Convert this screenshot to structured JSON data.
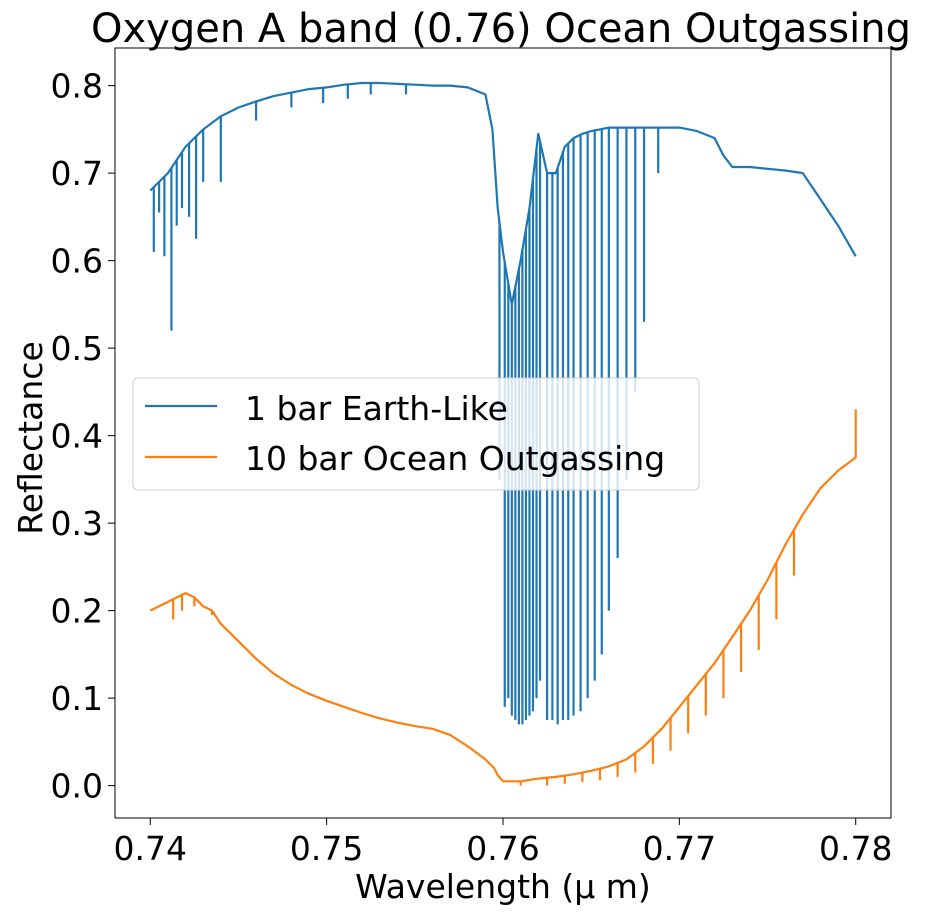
{
  "chart_data": {
    "type": "line",
    "title": "Oxygen A band (0.76) Ocean Outgassing",
    "xlabel": "Wavelength (μ m)",
    "ylabel": "Reflectance",
    "xlim": [
      0.738,
      0.782
    ],
    "ylim": [
      -0.037,
      0.843
    ],
    "xticks": [
      0.74,
      0.75,
      0.76,
      0.77,
      0.78
    ],
    "xtick_labels": [
      "0.74",
      "0.75",
      "0.76",
      "0.77",
      "0.78"
    ],
    "yticks": [
      0.0,
      0.1,
      0.2,
      0.3,
      0.4,
      0.5,
      0.6,
      0.7,
      0.8
    ],
    "ytick_labels": [
      "0.0",
      "0.1",
      "0.2",
      "0.3",
      "0.4",
      "0.5",
      "0.6",
      "0.7",
      "0.8"
    ],
    "grid": false,
    "legend_position": "center-left",
    "series": [
      {
        "name": "1 bar Earth-Like",
        "color": "#1f77b4",
        "x": [
          0.74,
          0.7405,
          0.741,
          0.7415,
          0.742,
          0.743,
          0.744,
          0.745,
          0.746,
          0.747,
          0.748,
          0.749,
          0.75,
          0.751,
          0.752,
          0.753,
          0.754,
          0.755,
          0.756,
          0.757,
          0.758,
          0.759,
          0.7594,
          0.7597,
          0.76,
          0.7605,
          0.761,
          0.7615,
          0.762,
          0.7625,
          0.763,
          0.7635,
          0.764,
          0.7645,
          0.765,
          0.7655,
          0.766,
          0.767,
          0.768,
          0.769,
          0.77,
          0.771,
          0.772,
          0.7725,
          0.773,
          0.774,
          0.775,
          0.776,
          0.777,
          0.778,
          0.779,
          0.78
        ],
        "y": [
          0.68,
          0.69,
          0.7,
          0.715,
          0.73,
          0.75,
          0.765,
          0.775,
          0.782,
          0.788,
          0.792,
          0.796,
          0.798,
          0.801,
          0.803,
          0.803,
          0.802,
          0.801,
          0.8,
          0.8,
          0.798,
          0.79,
          0.75,
          0.66,
          0.61,
          0.55,
          0.6,
          0.66,
          0.745,
          0.7,
          0.7,
          0.73,
          0.74,
          0.745,
          0.748,
          0.75,
          0.752,
          0.752,
          0.752,
          0.752,
          0.752,
          0.748,
          0.74,
          0.72,
          0.707,
          0.707,
          0.705,
          0.703,
          0.7,
          0.67,
          0.64,
          0.605
        ],
        "absorption_lines": [
          {
            "x": 0.7402,
            "min": 0.61
          },
          {
            "x": 0.7405,
            "min": 0.655
          },
          {
            "x": 0.7408,
            "min": 0.605
          },
          {
            "x": 0.7412,
            "min": 0.52
          },
          {
            "x": 0.7415,
            "min": 0.64
          },
          {
            "x": 0.7418,
            "min": 0.66
          },
          {
            "x": 0.7422,
            "min": 0.65
          },
          {
            "x": 0.7426,
            "min": 0.625
          },
          {
            "x": 0.743,
            "min": 0.69
          },
          {
            "x": 0.744,
            "min": 0.69
          },
          {
            "x": 0.746,
            "min": 0.76
          },
          {
            "x": 0.748,
            "min": 0.775
          },
          {
            "x": 0.7498,
            "min": 0.78
          },
          {
            "x": 0.7512,
            "min": 0.785
          },
          {
            "x": 0.7525,
            "min": 0.79
          },
          {
            "x": 0.7545,
            "min": 0.79
          },
          {
            "x": 0.7598,
            "min": 0.35
          },
          {
            "x": 0.7601,
            "min": 0.09
          },
          {
            "x": 0.7603,
            "min": 0.1
          },
          {
            "x": 0.7605,
            "min": 0.08
          },
          {
            "x": 0.7607,
            "min": 0.075
          },
          {
            "x": 0.7609,
            "min": 0.07
          },
          {
            "x": 0.7611,
            "min": 0.07
          },
          {
            "x": 0.7613,
            "min": 0.075
          },
          {
            "x": 0.7615,
            "min": 0.08
          },
          {
            "x": 0.7617,
            "min": 0.085
          },
          {
            "x": 0.7619,
            "min": 0.1
          },
          {
            "x": 0.7621,
            "min": 0.12
          },
          {
            "x": 0.7625,
            "min": 0.075
          },
          {
            "x": 0.7628,
            "min": 0.075
          },
          {
            "x": 0.7631,
            "min": 0.07
          },
          {
            "x": 0.7634,
            "min": 0.075
          },
          {
            "x": 0.7637,
            "min": 0.075
          },
          {
            "x": 0.764,
            "min": 0.08
          },
          {
            "x": 0.7644,
            "min": 0.085
          },
          {
            "x": 0.7648,
            "min": 0.1
          },
          {
            "x": 0.7652,
            "min": 0.12
          },
          {
            "x": 0.7656,
            "min": 0.15
          },
          {
            "x": 0.766,
            "min": 0.2
          },
          {
            "x": 0.7665,
            "min": 0.26
          },
          {
            "x": 0.767,
            "min": 0.35
          },
          {
            "x": 0.7675,
            "min": 0.45
          },
          {
            "x": 0.768,
            "min": 0.53
          },
          {
            "x": 0.7688,
            "min": 0.7
          }
        ]
      },
      {
        "name": "10 bar Ocean Outgassing",
        "color": "#ff7f0e",
        "x": [
          0.74,
          0.7405,
          0.741,
          0.7415,
          0.742,
          0.7425,
          0.743,
          0.7435,
          0.744,
          0.745,
          0.746,
          0.747,
          0.748,
          0.749,
          0.75,
          0.751,
          0.752,
          0.753,
          0.754,
          0.755,
          0.756,
          0.757,
          0.758,
          0.759,
          0.7595,
          0.7597,
          0.76,
          0.761,
          0.762,
          0.763,
          0.764,
          0.765,
          0.766,
          0.767,
          0.768,
          0.769,
          0.77,
          0.771,
          0.772,
          0.773,
          0.774,
          0.775,
          0.776,
          0.777,
          0.778,
          0.779,
          0.78,
          0.78,
          0.78
        ],
        "y": [
          0.2,
          0.205,
          0.21,
          0.215,
          0.22,
          0.215,
          0.205,
          0.2,
          0.185,
          0.165,
          0.145,
          0.128,
          0.115,
          0.105,
          0.097,
          0.09,
          0.083,
          0.077,
          0.072,
          0.068,
          0.065,
          0.058,
          0.045,
          0.03,
          0.02,
          0.012,
          0.005,
          0.005,
          0.008,
          0.01,
          0.013,
          0.017,
          0.022,
          0.03,
          0.045,
          0.065,
          0.09,
          0.115,
          0.14,
          0.17,
          0.2,
          0.235,
          0.275,
          0.31,
          0.34,
          0.36,
          0.375,
          0.4,
          0.43
        ],
        "absorption_lines": [
          {
            "x": 0.7413,
            "min": 0.19
          },
          {
            "x": 0.7418,
            "min": 0.2
          },
          {
            "x": 0.7425,
            "min": 0.205
          },
          {
            "x": 0.7435,
            "min": 0.195
          },
          {
            "x": 0.761,
            "min": 0.0
          },
          {
            "x": 0.7625,
            "min": 0.0
          },
          {
            "x": 0.7635,
            "min": 0.002
          },
          {
            "x": 0.7645,
            "min": 0.004
          },
          {
            "x": 0.7655,
            "min": 0.006
          },
          {
            "x": 0.7665,
            "min": 0.01
          },
          {
            "x": 0.7675,
            "min": 0.015
          },
          {
            "x": 0.7685,
            "min": 0.025
          },
          {
            "x": 0.7695,
            "min": 0.04
          },
          {
            "x": 0.7705,
            "min": 0.06
          },
          {
            "x": 0.7715,
            "min": 0.08
          },
          {
            "x": 0.7725,
            "min": 0.1
          },
          {
            "x": 0.7735,
            "min": 0.13
          },
          {
            "x": 0.7745,
            "min": 0.155
          },
          {
            "x": 0.7755,
            "min": 0.19
          },
          {
            "x": 0.7765,
            "min": 0.24
          }
        ]
      }
    ]
  }
}
